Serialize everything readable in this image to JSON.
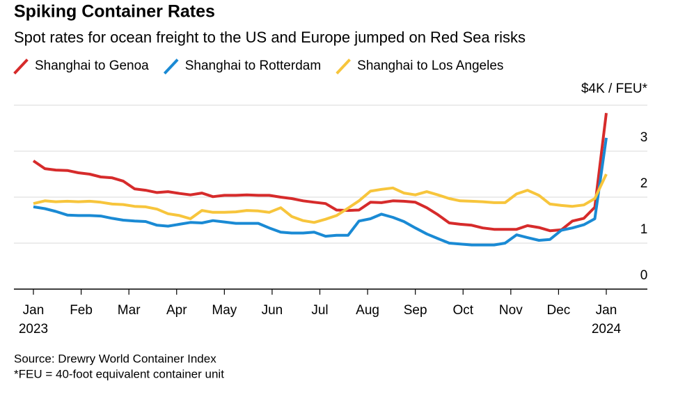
{
  "chart_data": {
    "type": "line",
    "title": "Spiking Container Rates",
    "subtitle": "Spot rates for ocean freight to the US and Europe jumped on Red Sea risks",
    "x": [
      0,
      0.24,
      0.47,
      0.71,
      0.94,
      1.18,
      1.41,
      1.65,
      1.88,
      2.12,
      2.35,
      2.59,
      2.82,
      3.06,
      3.29,
      3.53,
      3.76,
      4,
      4.24,
      4.47,
      4.71,
      4.94,
      5.18,
      5.41,
      5.65,
      5.88,
      6.12,
      6.35,
      6.59,
      6.82,
      7.06,
      7.29,
      7.53,
      7.76,
      8,
      8.24,
      8.47,
      8.71,
      8.94,
      9.18,
      9.41,
      9.65,
      9.88,
      10.12,
      10.35,
      10.59,
      10.82,
      11.06,
      11.29,
      11.53,
      11.76,
      12
    ],
    "series": [
      {
        "name": "Shanghai to Genoa",
        "color": "#d62b2b",
        "values": [
          2.79,
          2.62,
          2.59,
          2.58,
          2.53,
          2.5,
          2.44,
          2.42,
          2.35,
          2.18,
          2.15,
          2.1,
          2.12,
          2.08,
          2.05,
          2.09,
          2.01,
          2.04,
          2.04,
          2.05,
          2.04,
          2.04,
          2.0,
          1.97,
          1.92,
          1.89,
          1.86,
          1.72,
          1.71,
          1.72,
          1.89,
          1.88,
          1.92,
          1.91,
          1.89,
          1.77,
          1.62,
          1.44,
          1.41,
          1.39,
          1.33,
          1.3,
          1.3,
          1.3,
          1.38,
          1.34,
          1.27,
          1.29,
          1.48,
          1.54,
          1.78,
          3.83
        ]
      },
      {
        "name": "Shanghai to Rotterdam",
        "color": "#1a8ad4",
        "values": [
          1.79,
          1.75,
          1.69,
          1.61,
          1.6,
          1.6,
          1.59,
          1.54,
          1.5,
          1.48,
          1.47,
          1.39,
          1.37,
          1.41,
          1.45,
          1.44,
          1.49,
          1.46,
          1.43,
          1.43,
          1.43,
          1.33,
          1.24,
          1.22,
          1.22,
          1.24,
          1.15,
          1.17,
          1.17,
          1.48,
          1.53,
          1.63,
          1.56,
          1.47,
          1.33,
          1.2,
          1.1,
          1.0,
          0.98,
          0.96,
          0.96,
          0.96,
          1.0,
          1.18,
          1.12,
          1.06,
          1.08,
          1.28,
          1.33,
          1.4,
          1.53,
          3.29
        ]
      },
      {
        "name": "Shanghai to Los Angeles",
        "color": "#f7c53c",
        "values": [
          1.86,
          1.92,
          1.9,
          1.91,
          1.9,
          1.91,
          1.89,
          1.85,
          1.84,
          1.8,
          1.79,
          1.74,
          1.64,
          1.6,
          1.53,
          1.71,
          1.67,
          1.67,
          1.68,
          1.71,
          1.7,
          1.67,
          1.77,
          1.58,
          1.49,
          1.45,
          1.52,
          1.6,
          1.76,
          1.92,
          2.13,
          2.17,
          2.2,
          2.09,
          2.05,
          2.12,
          2.05,
          1.97,
          1.92,
          1.91,
          1.9,
          1.88,
          1.88,
          2.07,
          2.15,
          2.04,
          1.85,
          1.82,
          1.8,
          1.83,
          1.97,
          2.5
        ]
      }
    ],
    "xlim": [
      0,
      12
    ],
    "xticks": [
      {
        "value": 0,
        "label": "Jan"
      },
      {
        "value": 1,
        "label": "Feb"
      },
      {
        "value": 2,
        "label": "Mar"
      },
      {
        "value": 3,
        "label": "Apr"
      },
      {
        "value": 4,
        "label": "May"
      },
      {
        "value": 5,
        "label": "Jun"
      },
      {
        "value": 6,
        "label": "Jul"
      },
      {
        "value": 7,
        "label": "Aug"
      },
      {
        "value": 8,
        "label": "Sep"
      },
      {
        "value": 9,
        "label": "Oct"
      },
      {
        "value": 10,
        "label": "Nov"
      },
      {
        "value": 11,
        "label": "Dec"
      },
      {
        "value": 12,
        "label": "Jan"
      }
    ],
    "xtick_years": [
      {
        "value": 0,
        "label": "2023"
      },
      {
        "value": 12,
        "label": "2024"
      }
    ],
    "ylim": [
      0,
      4
    ],
    "yticks": [
      0,
      1,
      2,
      3,
      {
        "value": 4,
        "label": "$4K / FEU*"
      }
    ],
    "grid": true,
    "legend": "top",
    "source": "Source: Drewry World Container Index",
    "note": "*FEU = 40-foot equivalent container unit"
  }
}
